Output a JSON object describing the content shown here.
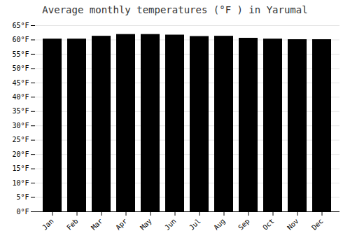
{
  "chart_data": {
    "type": "bar",
    "title": "Average monthly temperatures (°F ) in Yarumal",
    "categories": [
      "Jan",
      "Feb",
      "Mar",
      "Apr",
      "May",
      "Jun",
      "Jul",
      "Aug",
      "Sep",
      "Oct",
      "Nov",
      "Dec"
    ],
    "values": [
      60.3,
      60.3,
      61.3,
      61.9,
      61.9,
      61.7,
      61.2,
      61.3,
      60.6,
      60.3,
      60.1,
      60.1
    ],
    "ylim": [
      0,
      65
    ],
    "yticks": [
      {
        "value": 0,
        "label": "0°F"
      },
      {
        "value": 5,
        "label": "5°F"
      },
      {
        "value": 10,
        "label": "10°F"
      },
      {
        "value": 15,
        "label": "15°F"
      },
      {
        "value": 20,
        "label": "20°F"
      },
      {
        "value": 25,
        "label": "25°F"
      },
      {
        "value": 30,
        "label": "30°F"
      },
      {
        "value": 35,
        "label": "35°F"
      },
      {
        "value": 40,
        "label": "40°F"
      },
      {
        "value": 45,
        "label": "45°F"
      },
      {
        "value": 50,
        "label": "50°F"
      },
      {
        "value": 55,
        "label": "55°F"
      },
      {
        "value": 60,
        "label": "60°F"
      },
      {
        "value": 65,
        "label": "65°F"
      }
    ],
    "grid": true
  }
}
